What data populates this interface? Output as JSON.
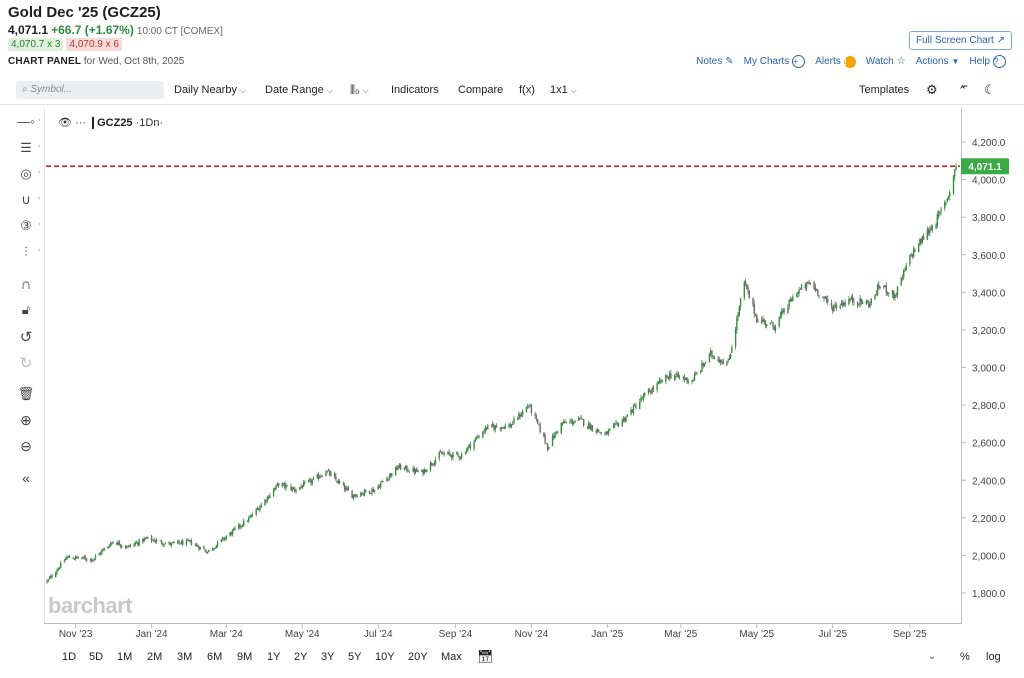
{
  "header": {
    "title": "Gold Dec '25 (GCZ25)",
    "last": "4,071.1",
    "change": "+66.7 (+1.67%)",
    "time": "10:00 CT [COMEX]",
    "bid": "4,070.7 x 3",
    "ask": "4,070.9 x 6",
    "panel_label": "CHART PANEL",
    "panel_date": "for Wed, Oct 8th, 2025",
    "full_screen": "Full Screen Chart"
  },
  "top_links": [
    {
      "label": "Notes",
      "icon": "edit-icon"
    },
    {
      "label": "My Charts",
      "icon": "plus-circle-icon"
    },
    {
      "label": "Alerts",
      "icon": "warning-icon"
    },
    {
      "label": "Watch",
      "icon": "star-icon"
    },
    {
      "label": "Actions",
      "icon": "caret-down-icon"
    },
    {
      "label": "Help",
      "icon": "help-circle-icon"
    }
  ],
  "toolbar": {
    "search_placeholder": "Symbol...",
    "daily": "Daily Nearby",
    "date_range": "Date Range",
    "indicators": "Indicators",
    "compare": "Compare",
    "fx": "f(x)",
    "layout": "1x1",
    "templates": "Templates"
  },
  "legend": {
    "symbol": "GCZ25",
    "suffix": "·1Dn·"
  },
  "watermark": "barchart",
  "periods": [
    "1D",
    "5D",
    "1M",
    "2M",
    "3M",
    "6M",
    "9M",
    "1Y",
    "2Y",
    "3Y",
    "5Y",
    "10Y",
    "20Y",
    "Max"
  ],
  "bottom_right": {
    "percent": "%",
    "log": "log"
  },
  "colors": {
    "up": "#3c8c40",
    "down": "#6b6b6b",
    "last_line": "#c62828",
    "last_tag": "#3aaa45"
  },
  "chart_data": {
    "type": "candlestick",
    "ylim": [
      1700,
      4300
    ],
    "yticks": [
      "4,200.0",
      "4,000.0",
      "3,800.0",
      "3,600.0",
      "3,400.0",
      "3,200.0",
      "3,000.0",
      "2,800.0",
      "2,600.0",
      "2,400.0",
      "2,200.0",
      "2,000.0",
      "1,800.0"
    ],
    "ytick_values": [
      4200,
      4000,
      3800,
      3600,
      3400,
      3200,
      3000,
      2800,
      2600,
      2400,
      2200,
      2000,
      1800
    ],
    "xticks": [
      "Nov '23",
      "Jan '24",
      "Mar '24",
      "May '24",
      "Jul '24",
      "Sep '24",
      "Nov '24",
      "Jan '25",
      "Mar '25",
      "May '25",
      "Jul '25",
      "Sep '25"
    ],
    "last_price": 4071.1,
    "last_label": "4,071.1",
    "x_range": [
      "2023-10-09",
      "2025-10-08"
    ],
    "close_path": [
      [
        "2023-10-09",
        1860
      ],
      [
        "2023-10-25",
        1990
      ],
      [
        "2023-11-15",
        1980
      ],
      [
        "2023-12-01",
        2075
      ],
      [
        "2023-12-13",
        2045
      ],
      [
        "2023-12-28",
        2090
      ],
      [
        "2024-01-15",
        2060
      ],
      [
        "2024-02-01",
        2070
      ],
      [
        "2024-02-15",
        2020
      ],
      [
        "2024-03-01",
        2100
      ],
      [
        "2024-03-20",
        2200
      ],
      [
        "2024-04-12",
        2380
      ],
      [
        "2024-04-25",
        2350
      ],
      [
        "2024-05-10",
        2400
      ],
      [
        "2024-05-20",
        2450
      ],
      [
        "2024-06-10",
        2320
      ],
      [
        "2024-06-28",
        2350
      ],
      [
        "2024-07-17",
        2470
      ],
      [
        "2024-08-05",
        2440
      ],
      [
        "2024-08-20",
        2540
      ],
      [
        "2024-09-05",
        2530
      ],
      [
        "2024-09-26",
        2680
      ],
      [
        "2024-10-15",
        2690
      ],
      [
        "2024-10-30",
        2800
      ],
      [
        "2024-11-14",
        2580
      ],
      [
        "2024-11-25",
        2700
      ],
      [
        "2024-12-10",
        2720
      ],
      [
        "2024-12-30",
        2640
      ],
      [
        "2025-01-15",
        2730
      ],
      [
        "2025-01-31",
        2850
      ],
      [
        "2025-02-20",
        2960
      ],
      [
        "2025-03-10",
        2930
      ],
      [
        "2025-03-25",
        3070
      ],
      [
        "2025-04-08",
        3020
      ],
      [
        "2025-04-21",
        3450
      ],
      [
        "2025-05-01",
        3260
      ],
      [
        "2025-05-15",
        3220
      ],
      [
        "2025-06-02",
        3400
      ],
      [
        "2025-06-13",
        3450
      ],
      [
        "2025-06-30",
        3320
      ],
      [
        "2025-07-15",
        3360
      ],
      [
        "2025-07-31",
        3340
      ],
      [
        "2025-08-08",
        3440
      ],
      [
        "2025-08-20",
        3380
      ],
      [
        "2025-09-02",
        3600
      ],
      [
        "2025-09-15",
        3720
      ],
      [
        "2025-09-24",
        3800
      ],
      [
        "2025-10-02",
        3920
      ],
      [
        "2025-10-08",
        4071.1
      ]
    ]
  }
}
